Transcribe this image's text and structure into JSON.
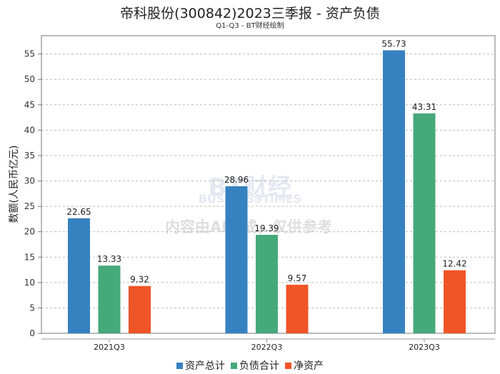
{
  "title": "帝科股份(300842)2023三季报 - 资产负债",
  "subtitle": "Q1-Q3 - BT财经绘制",
  "watermark": {
    "brand": "BT财经",
    "brand_en": "BUSINESSTIMES",
    "notice": "内容由AI生成，仅供参考"
  },
  "chart_data": {
    "type": "bar",
    "title": "帝科股份(300842)2023三季报 - 资产负债",
    "xlabel": "",
    "ylabel": "数额(人民币亿元)",
    "ylim": [
      0,
      58.6
    ],
    "yticks": [
      0,
      5,
      10,
      15,
      20,
      25,
      30,
      35,
      40,
      45,
      50,
      55
    ],
    "grid": true,
    "legend_position": "bottom",
    "categories": [
      "2021Q3",
      "2022Q3",
      "2023Q3"
    ],
    "series": [
      {
        "name": "资产总计",
        "color": "#3682c0",
        "values": [
          22.65,
          28.96,
          55.73
        ]
      },
      {
        "name": "负债合计",
        "color": "#45a97a",
        "values": [
          13.33,
          19.39,
          43.31
        ]
      },
      {
        "name": "净资产",
        "color": "#f05528",
        "values": [
          9.32,
          9.57,
          12.42
        ]
      }
    ]
  }
}
